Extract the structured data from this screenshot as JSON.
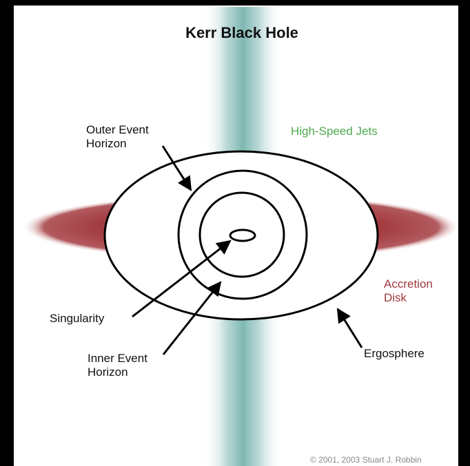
{
  "title": "Kerr Black Hole",
  "labels": {
    "outer_event_horizon": [
      "Outer Event",
      "Horizon"
    ],
    "high_speed_jets": "High-Speed Jets",
    "accretion_disk": [
      "Accretion",
      "Disk"
    ],
    "singularity": "Singularity",
    "inner_event_horizon": [
      "Inner Event",
      "Horizon"
    ],
    "ergosphere": "Ergosphere"
  },
  "copyright": "© 2001, 2003 Stuart J. Robbin"
}
